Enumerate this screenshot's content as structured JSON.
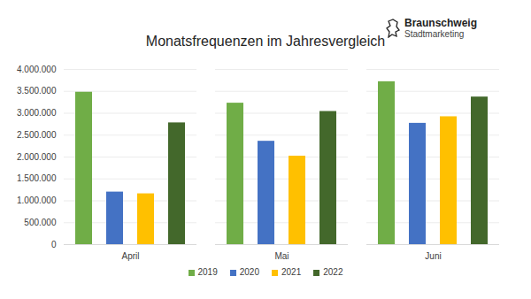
{
  "chart_data": {
    "type": "bar",
    "title": "Monatsfrequenzen im Jahresvergleich",
    "annotations": [
      "Braunschweig",
      "Stadtmarketing"
    ],
    "categories": [
      "April",
      "Mai",
      "Juni"
    ],
    "series": [
      {
        "name": "2019",
        "color": "#70ad47",
        "values": [
          3480000,
          3230000,
          3720000
        ]
      },
      {
        "name": "2020",
        "color": "#4472c4",
        "values": [
          1200000,
          2360000,
          2770000
        ]
      },
      {
        "name": "2021",
        "color": "#ffc000",
        "values": [
          1160000,
          2020000,
          2920000
        ]
      },
      {
        "name": "2022",
        "color": "#43682b",
        "values": [
          2780000,
          3040000,
          3370000
        ]
      }
    ],
    "ylim": [
      0,
      4000000
    ],
    "yticks": [
      0,
      {
        "value": 500000,
        "label": "500.000"
      },
      {
        "value": 1000000,
        "label": "1.000.000"
      },
      {
        "value": 1500000,
        "label": "1.500.000"
      },
      {
        "value": 2000000,
        "label": "2.000.000"
      },
      {
        "value": 2500000,
        "label": "2.500.000"
      },
      {
        "value": 3000000,
        "label": "3.000.000"
      },
      {
        "value": 3500000,
        "label": "3.500.000"
      },
      {
        "value": 4000000,
        "label": "4.000.000"
      }
    ],
    "grid": true,
    "legend": "bottom"
  }
}
